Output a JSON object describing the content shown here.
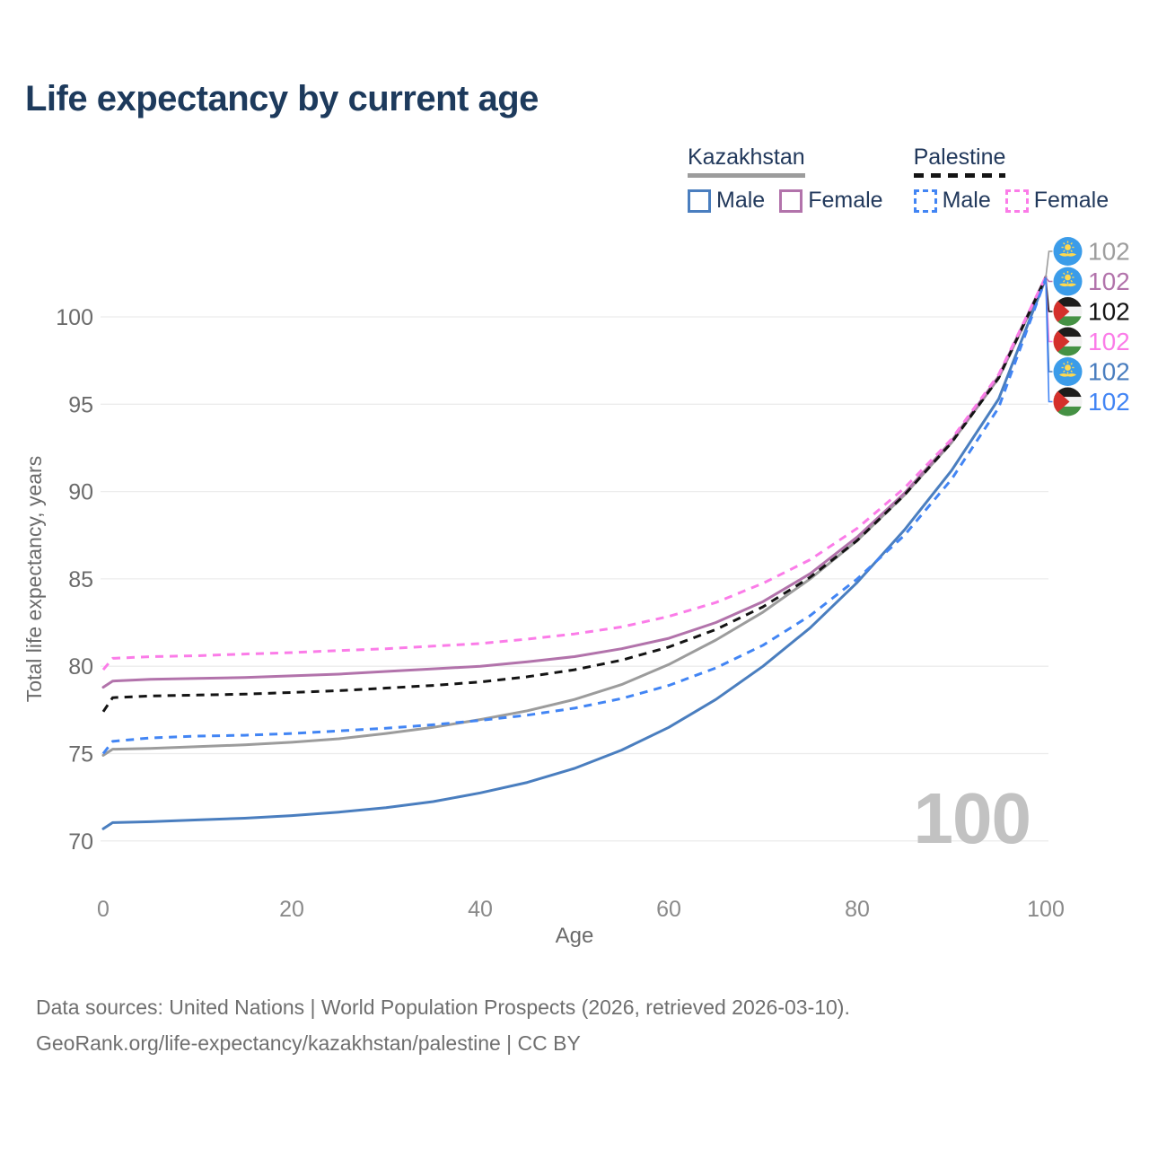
{
  "title": "Life expectancy by current age",
  "watermark_age": "100",
  "legend": {
    "groups": [
      {
        "label": "Kazakhstan",
        "line_style": "solid",
        "underline_color": "#9c9c9c",
        "items": [
          {
            "label": "Male",
            "color": "#4a7ebf"
          },
          {
            "label": "Female",
            "color": "#b273ab"
          }
        ]
      },
      {
        "label": "Palestine",
        "line_style": "dashed",
        "underline_color": "#141414",
        "items": [
          {
            "label": "Male",
            "color": "#4285f4"
          },
          {
            "label": "Female",
            "color": "#fb7ce8"
          }
        ]
      }
    ]
  },
  "footer": {
    "line1": "Data sources: United Nations | World Population Prospects (2026, retrieved 2026-03-10).",
    "line2": "GeoRank.org/life-expectancy/kazakhstan/palestine | CC BY"
  },
  "chart_data": {
    "type": "line",
    "title": "Life expectancy by current age",
    "xlabel": "Age",
    "ylabel": "Total life expectancy, years",
    "x_ticks": [
      0,
      20,
      40,
      60,
      80,
      100
    ],
    "y_ticks": [
      70,
      75,
      80,
      85,
      90,
      95,
      100
    ],
    "xlim": [
      0,
      100
    ],
    "ylim": [
      68.5,
      103.5
    ],
    "grid": "horizontal",
    "legend_position": "top-right",
    "x": [
      0,
      1,
      5,
      10,
      15,
      20,
      25,
      30,
      35,
      40,
      45,
      50,
      55,
      60,
      65,
      70,
      75,
      80,
      85,
      90,
      95,
      100
    ],
    "series": [
      {
        "name": "Kazakhstan Total",
        "country": "kz",
        "color": "#9c9c9c",
        "dash": false,
        "values": [
          74.9,
          75.25,
          75.3,
          75.4,
          75.5,
          75.65,
          75.85,
          76.15,
          76.5,
          76.95,
          77.45,
          78.1,
          78.95,
          80.1,
          81.5,
          83.1,
          85.0,
          87.2,
          89.8,
          92.8,
          96.5,
          102.2
        ]
      },
      {
        "name": "Kazakhstan Female",
        "country": "kz",
        "color": "#b273ab",
        "dash": false,
        "values": [
          78.8,
          79.15,
          79.25,
          79.3,
          79.35,
          79.45,
          79.55,
          79.7,
          79.85,
          80.0,
          80.25,
          80.55,
          81.0,
          81.6,
          82.5,
          83.7,
          85.3,
          87.4,
          89.9,
          92.9,
          96.6,
          102.3
        ]
      },
      {
        "name": "Kazakhstan Male",
        "country": "kz",
        "color": "#4a7ebf",
        "dash": false,
        "values": [
          70.7,
          71.05,
          71.1,
          71.2,
          71.3,
          71.45,
          71.65,
          71.9,
          72.25,
          72.75,
          73.35,
          74.15,
          75.2,
          76.5,
          78.1,
          80.0,
          82.2,
          84.8,
          87.8,
          91.2,
          95.3,
          102.2
        ]
      },
      {
        "name": "Palestine Total",
        "country": "ps",
        "color": "#141414",
        "dash": true,
        "values": [
          77.4,
          78.2,
          78.3,
          78.35,
          78.4,
          78.5,
          78.6,
          78.75,
          78.9,
          79.1,
          79.4,
          79.8,
          80.35,
          81.1,
          82.1,
          83.4,
          85.1,
          87.2,
          89.8,
          92.8,
          96.5,
          102.25
        ]
      },
      {
        "name": "Palestine Female",
        "country": "ps",
        "color": "#fb7ce8",
        "dash": true,
        "values": [
          79.8,
          80.45,
          80.55,
          80.6,
          80.7,
          80.78,
          80.9,
          81.0,
          81.15,
          81.3,
          81.55,
          81.85,
          82.25,
          82.85,
          83.65,
          84.75,
          86.1,
          87.9,
          90.2,
          93.0,
          96.7,
          102.3
        ]
      },
      {
        "name": "Palestine Male",
        "country": "ps",
        "color": "#4285f4",
        "dash": true,
        "values": [
          75.0,
          75.7,
          75.9,
          76.0,
          76.05,
          76.15,
          76.3,
          76.45,
          76.65,
          76.9,
          77.2,
          77.6,
          78.15,
          78.9,
          79.9,
          81.2,
          82.9,
          85.0,
          87.5,
          90.7,
          94.8,
          102.2
        ]
      }
    ],
    "end_labels": [
      {
        "series": "Kazakhstan Total",
        "flag": "kz",
        "value": "102",
        "color": "#9e9e9e"
      },
      {
        "series": "Kazakhstan Female",
        "flag": "kz",
        "value": "102",
        "color": "#b273ab"
      },
      {
        "series": "Palestine Total",
        "flag": "ps",
        "value": "102",
        "color": "#141414"
      },
      {
        "series": "Palestine Female",
        "flag": "ps",
        "value": "102",
        "color": "#fb7ce8"
      },
      {
        "series": "Kazakhstan Male",
        "flag": "kz",
        "value": "102",
        "color": "#4a7ebf"
      },
      {
        "series": "Palestine Male",
        "flag": "ps",
        "value": "102",
        "color": "#4285f4"
      }
    ]
  }
}
